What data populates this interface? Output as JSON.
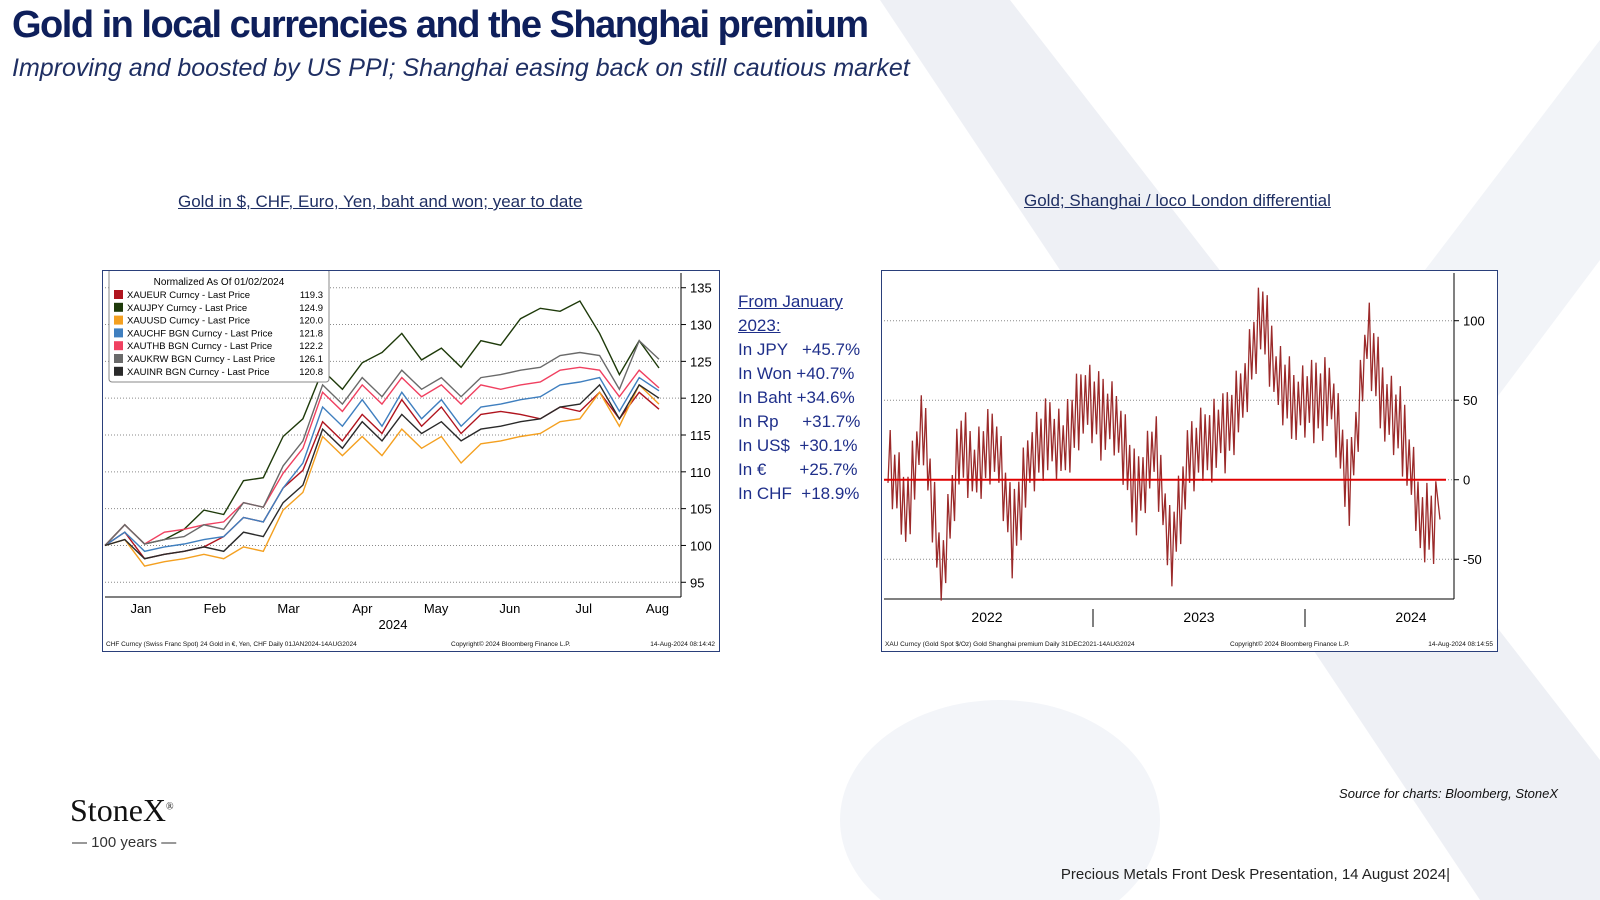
{
  "header": {
    "title": "Gold in local currencies and the Shanghai premium",
    "subtitle": "Improving and boosted by US PPI; Shanghai easing back on still  cautious market"
  },
  "left_chart_heading": "Gold in $, CHF, Euro, Yen, baht and won; year to date",
  "right_chart_heading": "Gold; Shanghai / loco London differential",
  "stats": {
    "heading_line1": "From January",
    "heading_line2": "2023:",
    "rows": [
      "In JPY   +45.7%",
      "In Won +40.7%",
      "In Baht +34.6%",
      "In Rp     +31.7%",
      "In US$  +30.1%",
      "In €       +25.7%",
      "In CHF  +18.9%"
    ]
  },
  "source": "Source for charts: Bloomberg, StoneX",
  "footer": "Precious Metals Front Desk Presentation, 14 August 2024|",
  "logo": {
    "name": "StoneX",
    "mark": "®",
    "tagline": "— 100 years —"
  },
  "colors": {
    "navy": "#0e1f5b",
    "premium_line": "#9b2a2a",
    "zero_line": "#e00000"
  },
  "chart_data": [
    {
      "type": "line",
      "legend_title": "Normalized As Of 01/02/2024",
      "legend_position": "top-left",
      "x_labels": [
        "Jan",
        "Feb",
        "Mar",
        "Apr",
        "May",
        "Jun",
        "Jul",
        "Aug"
      ],
      "x_year": "2024",
      "ylim": [
        93,
        137
      ],
      "yticks": [
        95,
        100,
        105,
        110,
        115,
        120,
        125,
        130,
        135
      ],
      "grid": true,
      "footer_left": "CHF Curncy (Swiss Franc Spot) 24 Gold in €, Yen, CHF  Daily 01JAN2024-14AUG2024",
      "footer_mid": "Copyright© 2024 Bloomberg Finance L.P.",
      "footer_right": "14-Aug-2024 08:14:42",
      "series": [
        {
          "name": "XAUEUR Curncy - Last Price",
          "last": "119.3",
          "color": "#b0141e",
          "values": [
            100,
            101,
            99,
            98,
            100,
            99,
            102,
            103,
            104,
            107,
            111,
            116,
            115,
            117,
            116,
            119,
            117,
            118,
            116,
            117,
            119,
            117,
            118,
            118,
            119,
            120,
            118,
            120,
            119.3
          ]
        },
        {
          "name": "XAUJPY Curncy - Last Price",
          "last": "124.9",
          "color": "#1e3a0a",
          "values": [
            100,
            102,
            101,
            100,
            103,
            104,
            105,
            108,
            110,
            114,
            118,
            123,
            122,
            124,
            127,
            128,
            126,
            126,
            125,
            127,
            128,
            130,
            133,
            131,
            134,
            128,
            124,
            127,
            124.9
          ]
        },
        {
          "name": "XAUUSD Curncy - Last Price",
          "last": "120.0",
          "color": "#f4a020",
          "values": [
            100,
            100,
            98,
            97,
            99,
            98,
            99,
            99,
            100,
            104,
            108,
            114,
            113,
            114,
            113,
            115,
            114,
            114,
            112,
            113,
            115,
            114,
            116,
            116,
            118,
            120,
            117,
            121,
            120.0
          ]
        },
        {
          "name": "XAUCHF BGN Curncy - Last Price",
          "last": "121.8",
          "color": "#3f7fbf",
          "values": [
            100,
            101,
            100,
            99,
            101,
            100,
            102,
            103,
            104,
            107,
            112,
            118,
            117,
            119,
            117,
            120,
            118,
            119,
            117,
            118,
            120,
            119,
            121,
            121,
            123,
            122,
            119,
            122,
            121.8
          ]
        },
        {
          "name": "XAUTHB BGN Curncy - Last Price",
          "last": "122.2",
          "color": "#f04060",
          "values": [
            100,
            102,
            101,
            101,
            103,
            102,
            104,
            105,
            106,
            109,
            114,
            120,
            119,
            121,
            120,
            122,
            121,
            121,
            120,
            121,
            122,
            121,
            123,
            123,
            125,
            123,
            121,
            123,
            122.2
          ]
        },
        {
          "name": "XAUKRW BGN Curncy - Last Price",
          "last": "126.1",
          "color": "#6a6a6a",
          "values": [
            100,
            102,
            101,
            100,
            102,
            102,
            103,
            105,
            106,
            110,
            115,
            121,
            120,
            122,
            121,
            123,
            122,
            122,
            121,
            122,
            124,
            123,
            125,
            125,
            127,
            125,
            122,
            127,
            126.1
          ]
        },
        {
          "name": "XAUINR BGN Curncy - Last Price",
          "last": "120.8",
          "color": "#2a2a2a",
          "values": [
            100,
            100,
            99,
            98,
            100,
            99,
            100,
            101,
            102,
            105,
            109,
            115,
            114,
            116,
            115,
            117,
            116,
            116,
            115,
            115,
            117,
            116,
            118,
            118,
            120,
            121,
            118,
            121,
            120.8
          ]
        }
      ]
    },
    {
      "type": "line",
      "series_name": "XAU Curncy (Gold Spot $/Oz) Gold Shanghai premium",
      "x_labels": [
        "2022",
        "2023",
        "2024"
      ],
      "ylim": [
        -75,
        130
      ],
      "yticks": [
        -50,
        0,
        50,
        100
      ],
      "reference_line": 0,
      "grid": true,
      "footer_left": "XAU Curncy (Gold Spot  $/Oz) Gold Shanghai premium  Daily 31DEC2021-14AUG2024",
      "footer_mid": "Copyright© 2024 Bloomberg Finance L.P.",
      "footer_right": "14-Aug-2024 08:14:55",
      "x": [
        "2022-01",
        "2022-02",
        "2022-03",
        "2022-04",
        "2022-05",
        "2022-06",
        "2022-07",
        "2022-08",
        "2022-09",
        "2022-10",
        "2022-11",
        "2022-12",
        "2023-01",
        "2023-02",
        "2023-03",
        "2023-04",
        "2023-05",
        "2023-06",
        "2023-07",
        "2023-08",
        "2023-09",
        "2023-10",
        "2023-11",
        "2023-12",
        "2024-01",
        "2024-02",
        "2024-03",
        "2024-04",
        "2024-05",
        "2024-06",
        "2024-07",
        "2024-08"
      ],
      "values": [
        10,
        -20,
        35,
        -60,
        20,
        5,
        25,
        -35,
        15,
        30,
        20,
        50,
        40,
        35,
        -10,
        20,
        -45,
        10,
        25,
        30,
        55,
        105,
        60,
        45,
        50,
        55,
        -5,
        90,
        45,
        30,
        -25,
        -25
      ]
    }
  ]
}
